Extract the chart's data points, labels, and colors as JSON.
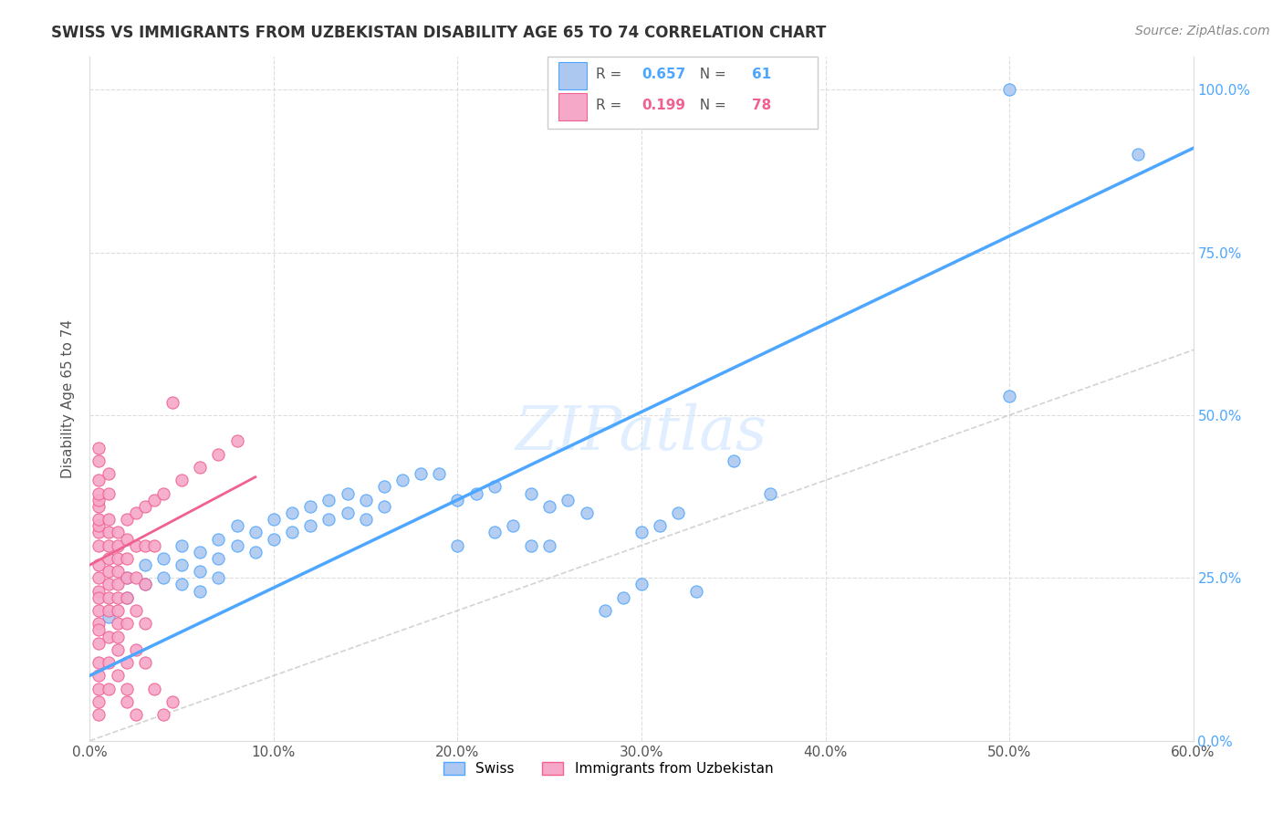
{
  "title": "SWISS VS IMMIGRANTS FROM UZBEKISTAN DISABILITY AGE 65 TO 74 CORRELATION CHART",
  "source": "Source: ZipAtlas.com",
  "ylabel": "Disability Age 65 to 74",
  "xmin": 0.0,
  "xmax": 0.6,
  "ymin": 0.0,
  "ymax": 1.05,
  "xtick_labels": [
    "0.0%",
    "10.0%",
    "20.0%",
    "30.0%",
    "40.0%",
    "50.0%",
    "60.0%"
  ],
  "xtick_vals": [
    0.0,
    0.1,
    0.2,
    0.3,
    0.4,
    0.5,
    0.6
  ],
  "ytick_labels": [
    "0.0%",
    "25.0%",
    "50.0%",
    "75.0%",
    "100.0%"
  ],
  "ytick_vals": [
    0.0,
    0.25,
    0.5,
    0.75,
    1.0
  ],
  "swiss_R": 0.657,
  "swiss_N": 61,
  "uzbek_R": 0.199,
  "uzbek_N": 78,
  "swiss_color": "#adc8f0",
  "uzbek_color": "#f5a8c8",
  "swiss_line_color": "#4da6ff",
  "uzbek_line_color": "#f06090",
  "diagonal_color": "#c8c8c8",
  "background_color": "#ffffff",
  "watermark": "ZIPatlas",
  "swiss_points": [
    [
      0.01,
      0.19
    ],
    [
      0.02,
      0.22
    ],
    [
      0.02,
      0.25
    ],
    [
      0.03,
      0.24
    ],
    [
      0.03,
      0.27
    ],
    [
      0.04,
      0.25
    ],
    [
      0.04,
      0.28
    ],
    [
      0.05,
      0.27
    ],
    [
      0.05,
      0.3
    ],
    [
      0.05,
      0.24
    ],
    [
      0.06,
      0.29
    ],
    [
      0.06,
      0.26
    ],
    [
      0.06,
      0.23
    ],
    [
      0.07,
      0.31
    ],
    [
      0.07,
      0.28
    ],
    [
      0.07,
      0.25
    ],
    [
      0.08,
      0.33
    ],
    [
      0.08,
      0.3
    ],
    [
      0.09,
      0.32
    ],
    [
      0.09,
      0.29
    ],
    [
      0.1,
      0.34
    ],
    [
      0.1,
      0.31
    ],
    [
      0.11,
      0.35
    ],
    [
      0.11,
      0.32
    ],
    [
      0.12,
      0.36
    ],
    [
      0.12,
      0.33
    ],
    [
      0.13,
      0.37
    ],
    [
      0.13,
      0.34
    ],
    [
      0.14,
      0.38
    ],
    [
      0.14,
      0.35
    ],
    [
      0.15,
      0.37
    ],
    [
      0.15,
      0.34
    ],
    [
      0.16,
      0.39
    ],
    [
      0.16,
      0.36
    ],
    [
      0.17,
      0.4
    ],
    [
      0.18,
      0.41
    ],
    [
      0.19,
      0.41
    ],
    [
      0.2,
      0.37
    ],
    [
      0.2,
      0.3
    ],
    [
      0.21,
      0.38
    ],
    [
      0.22,
      0.39
    ],
    [
      0.22,
      0.32
    ],
    [
      0.23,
      0.33
    ],
    [
      0.24,
      0.38
    ],
    [
      0.24,
      0.3
    ],
    [
      0.25,
      0.36
    ],
    [
      0.25,
      0.3
    ],
    [
      0.26,
      0.37
    ],
    [
      0.27,
      0.35
    ],
    [
      0.28,
      0.2
    ],
    [
      0.29,
      0.22
    ],
    [
      0.3,
      0.24
    ],
    [
      0.3,
      0.32
    ],
    [
      0.31,
      0.33
    ],
    [
      0.32,
      0.35
    ],
    [
      0.33,
      0.23
    ],
    [
      0.35,
      0.43
    ],
    [
      0.37,
      0.38
    ],
    [
      0.5,
      0.53
    ],
    [
      0.5,
      1.0
    ],
    [
      0.57,
      0.9
    ]
  ],
  "uzbek_points": [
    [
      0.005,
      0.3
    ],
    [
      0.005,
      0.32
    ],
    [
      0.005,
      0.33
    ],
    [
      0.005,
      0.34
    ],
    [
      0.005,
      0.36
    ],
    [
      0.005,
      0.37
    ],
    [
      0.005,
      0.38
    ],
    [
      0.005,
      0.4
    ],
    [
      0.005,
      0.27
    ],
    [
      0.005,
      0.25
    ],
    [
      0.005,
      0.23
    ],
    [
      0.005,
      0.22
    ],
    [
      0.005,
      0.2
    ],
    [
      0.005,
      0.18
    ],
    [
      0.005,
      0.17
    ],
    [
      0.005,
      0.15
    ],
    [
      0.005,
      0.12
    ],
    [
      0.005,
      0.1
    ],
    [
      0.005,
      0.08
    ],
    [
      0.005,
      0.06
    ],
    [
      0.005,
      0.04
    ],
    [
      0.01,
      0.3
    ],
    [
      0.01,
      0.32
    ],
    [
      0.01,
      0.34
    ],
    [
      0.01,
      0.28
    ],
    [
      0.01,
      0.26
    ],
    [
      0.01,
      0.24
    ],
    [
      0.01,
      0.22
    ],
    [
      0.01,
      0.2
    ],
    [
      0.01,
      0.16
    ],
    [
      0.01,
      0.12
    ],
    [
      0.01,
      0.08
    ],
    [
      0.015,
      0.32
    ],
    [
      0.015,
      0.3
    ],
    [
      0.015,
      0.28
    ],
    [
      0.015,
      0.26
    ],
    [
      0.015,
      0.24
    ],
    [
      0.015,
      0.22
    ],
    [
      0.015,
      0.2
    ],
    [
      0.015,
      0.18
    ],
    [
      0.015,
      0.14
    ],
    [
      0.015,
      0.1
    ],
    [
      0.02,
      0.34
    ],
    [
      0.02,
      0.31
    ],
    [
      0.02,
      0.28
    ],
    [
      0.02,
      0.25
    ],
    [
      0.02,
      0.22
    ],
    [
      0.02,
      0.18
    ],
    [
      0.02,
      0.12
    ],
    [
      0.02,
      0.06
    ],
    [
      0.025,
      0.35
    ],
    [
      0.025,
      0.3
    ],
    [
      0.025,
      0.25
    ],
    [
      0.025,
      0.2
    ],
    [
      0.025,
      0.14
    ],
    [
      0.03,
      0.36
    ],
    [
      0.03,
      0.3
    ],
    [
      0.03,
      0.24
    ],
    [
      0.03,
      0.18
    ],
    [
      0.035,
      0.37
    ],
    [
      0.035,
      0.3
    ],
    [
      0.04,
      0.38
    ],
    [
      0.045,
      0.52
    ],
    [
      0.05,
      0.4
    ],
    [
      0.06,
      0.42
    ],
    [
      0.07,
      0.44
    ],
    [
      0.08,
      0.46
    ],
    [
      0.005,
      0.43
    ],
    [
      0.01,
      0.38
    ],
    [
      0.015,
      0.16
    ],
    [
      0.02,
      0.08
    ],
    [
      0.025,
      0.04
    ],
    [
      0.03,
      0.12
    ],
    [
      0.035,
      0.08
    ],
    [
      0.04,
      0.04
    ],
    [
      0.045,
      0.06
    ],
    [
      0.005,
      0.45
    ],
    [
      0.01,
      0.41
    ]
  ]
}
